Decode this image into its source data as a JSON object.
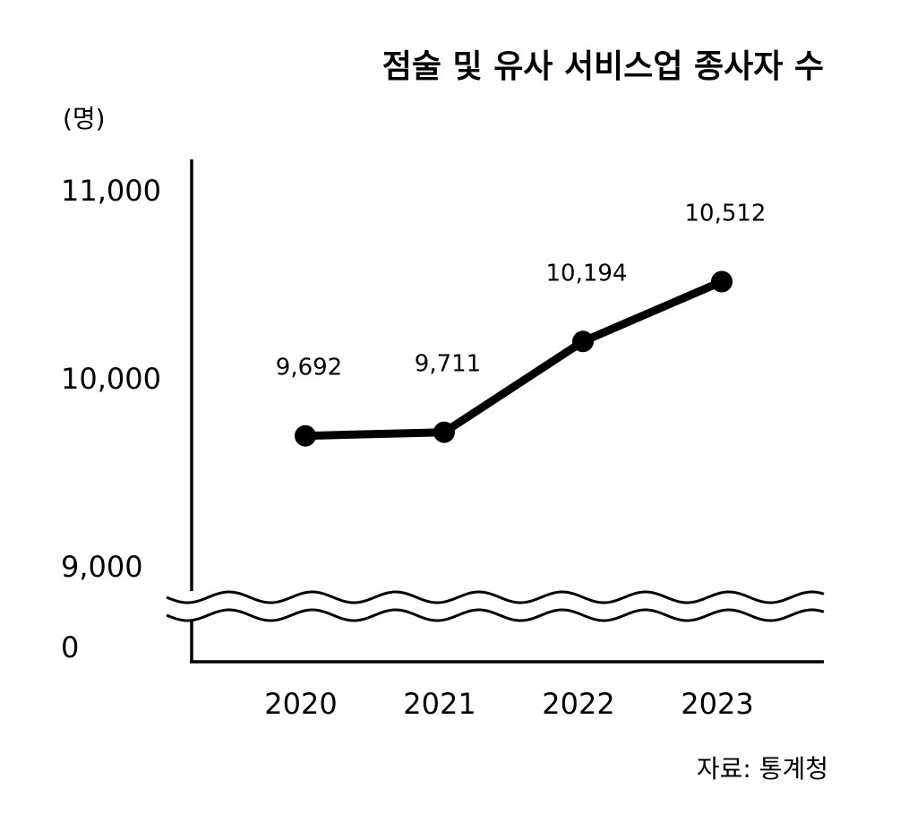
{
  "chart_data": {
    "type": "line",
    "title": "점술 및 유사 서비스업 종사자 수",
    "unit": "(명)",
    "source": "자료: 통계청",
    "categories": [
      "2020",
      "2021",
      "2022",
      "2023"
    ],
    "series": [
      {
        "values": [
          9692,
          9711,
          10194,
          10512
        ],
        "value_labels": [
          "9,692",
          "9,711",
          "10,194",
          "10,512"
        ]
      }
    ],
    "ylim": [
      9000,
      11000
    ],
    "y_axis_break": true,
    "yticks": [
      {
        "value": 11000,
        "label": "11,000"
      },
      {
        "value": 10000,
        "label": "10,000"
      },
      {
        "value": 9000,
        "label": "9,000"
      },
      {
        "value": 0,
        "label": "0"
      }
    ],
    "grid": false,
    "legend": "none",
    "colors": {
      "line": "#000000",
      "background": "#ffffff"
    }
  }
}
